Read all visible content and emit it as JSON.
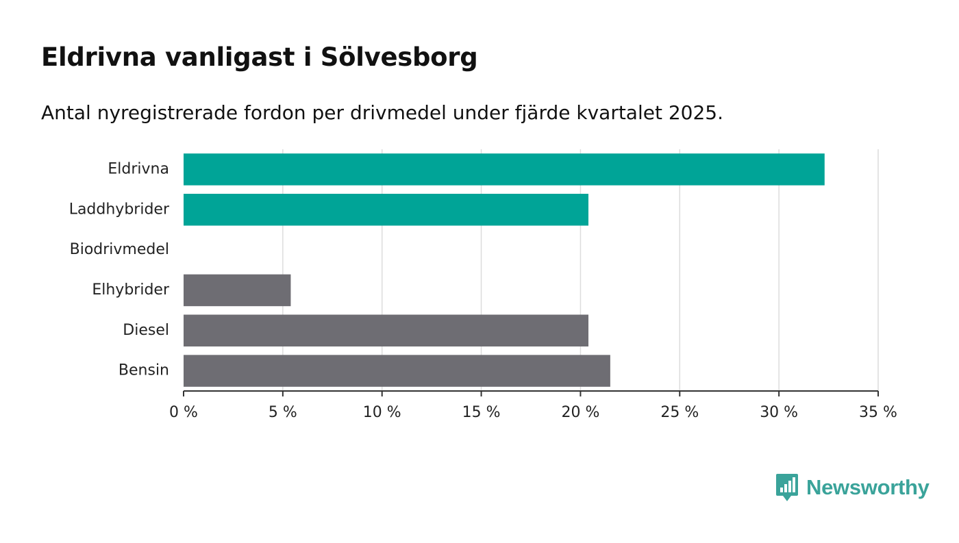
{
  "header": {
    "title": "Eldrivna vanligast i Sölvesborg",
    "subtitle": "Antal nyregistrerade fordon per drivmedel under fjärde kvartalet 2025."
  },
  "chart_data": {
    "type": "bar",
    "orientation": "horizontal",
    "categories": [
      "Eldrivna",
      "Laddhybrider",
      "Biodrivmedel",
      "Elhybrider",
      "Diesel",
      "Bensin"
    ],
    "values": [
      32.3,
      20.4,
      0,
      5.4,
      20.4,
      21.5
    ],
    "bar_colors": [
      "#00a497",
      "#00a497",
      "#00a497",
      "#6e6d73",
      "#6e6d73",
      "#6e6d73"
    ],
    "xlim": [
      0,
      35
    ],
    "xticks": [
      0,
      5,
      10,
      15,
      20,
      25,
      30,
      35
    ],
    "xtick_labels": [
      "0 %",
      "5 %",
      "10 %",
      "15 %",
      "20 %",
      "25 %",
      "30 %",
      "35 %"
    ],
    "grid": true,
    "xlabel": "",
    "ylabel": ""
  },
  "branding": {
    "name": "Newsworthy",
    "color": "#3aa39a"
  }
}
